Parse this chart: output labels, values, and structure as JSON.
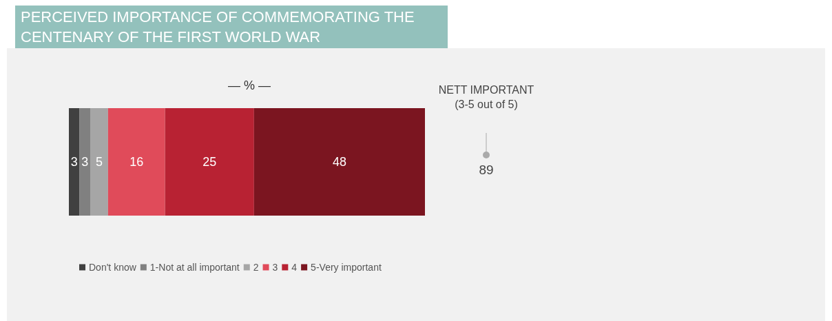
{
  "chart_data": {
    "type": "bar",
    "title": "PERCEIVED IMPORTANCE OF COMMEMORATING THE CENTENARY OF THE FIRST WORLD WAR",
    "subtitle": "— % —",
    "orientation": "horizontal",
    "stacked": true,
    "categories": [
      null
    ],
    "xlim": [
      0,
      100
    ],
    "tick_labels": false,
    "data_labels": true,
    "legend": "bottom",
    "series": [
      {
        "name": "Don't know",
        "color": "#404040",
        "values": [
          3
        ]
      },
      {
        "name": "1-Not at all important",
        "color": "#808080",
        "values": [
          3
        ]
      },
      {
        "name": "2",
        "color": "#a6a6a6",
        "values": [
          5
        ]
      },
      {
        "name": "3",
        "color": "#e04b5a",
        "values": [
          16
        ]
      },
      {
        "name": "4",
        "color": "#b82233",
        "values": [
          25
        ]
      },
      {
        "name": "5-Very important",
        "color": "#7b1520",
        "values": [
          48
        ]
      }
    ],
    "annotations": [
      "NETT IMPORTANT (3-5 out of 5)",
      "89"
    ]
  }
}
